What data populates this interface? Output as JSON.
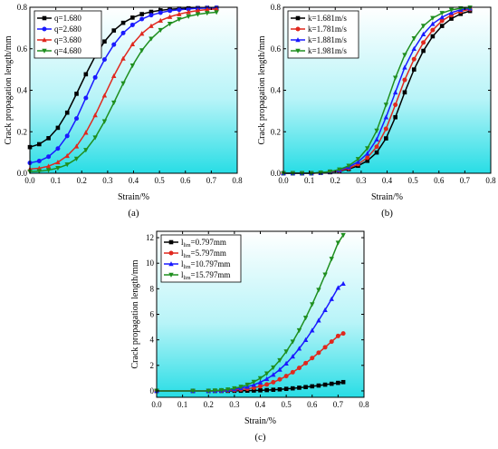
{
  "chart_data": [
    {
      "type": "line",
      "panel_label": "(a)",
      "xlabel": "Strain/%",
      "ylabel": "Crack propagation length/mm",
      "xlim": [
        0,
        0.8
      ],
      "ylim": [
        0,
        0.8
      ],
      "xticks": [
        "0.0",
        "0.1",
        "0.2",
        "0.3",
        "0.4",
        "0.5",
        "0.6",
        "0.7",
        "0.8"
      ],
      "yticks": [
        "0.0",
        "0.2",
        "0.4",
        "0.6",
        "0.8"
      ],
      "legend_position": "top-left",
      "x": [
        0.0,
        0.036,
        0.072,
        0.108,
        0.144,
        0.18,
        0.216,
        0.252,
        0.288,
        0.324,
        0.36,
        0.396,
        0.432,
        0.468,
        0.504,
        0.54,
        0.576,
        0.612,
        0.648,
        0.684,
        0.72
      ],
      "series": [
        {
          "name": "q=1.680",
          "color": "#000000",
          "marker": "square",
          "values": [
            0.126,
            0.14,
            0.169,
            0.219,
            0.292,
            0.383,
            0.477,
            0.564,
            0.635,
            0.688,
            0.725,
            0.75,
            0.767,
            0.778,
            0.785,
            0.79,
            0.793,
            0.795,
            0.796,
            0.797,
            0.797
          ]
        },
        {
          "name": "q=2.680",
          "color": "#1a1aff",
          "marker": "circle",
          "values": [
            0.05,
            0.059,
            0.08,
            0.119,
            0.18,
            0.264,
            0.363,
            0.462,
            0.548,
            0.62,
            0.676,
            0.715,
            0.743,
            0.762,
            0.774,
            0.783,
            0.788,
            0.792,
            0.795,
            0.796,
            0.797
          ]
        },
        {
          "name": "q=3.680",
          "color": "#e0281e",
          "marker": "triangle-up",
          "values": [
            0.02,
            0.024,
            0.034,
            0.053,
            0.084,
            0.13,
            0.196,
            0.28,
            0.375,
            0.469,
            0.553,
            0.622,
            0.673,
            0.71,
            0.736,
            0.754,
            0.767,
            0.777,
            0.784,
            0.789,
            0.792
          ]
        },
        {
          "name": "q=4.680",
          "color": "#1f8f1f",
          "marker": "triangle-down",
          "values": [
            0.008,
            0.01,
            0.015,
            0.025,
            0.042,
            0.07,
            0.112,
            0.172,
            0.25,
            0.34,
            0.433,
            0.519,
            0.592,
            0.648,
            0.69,
            0.72,
            0.742,
            0.756,
            0.766,
            0.772,
            0.776
          ]
        }
      ]
    },
    {
      "type": "line",
      "panel_label": "(b)",
      "xlabel": "Strain/%",
      "ylabel": "Crack propagation length/mm",
      "xlim": [
        0,
        0.8
      ],
      "ylim": [
        0,
        0.8
      ],
      "xticks": [
        "0.0",
        "0.1",
        "0.2",
        "0.3",
        "0.4",
        "0.5",
        "0.6",
        "0.7",
        "0.8"
      ],
      "yticks": [
        "0.0",
        "0.2",
        "0.4",
        "0.6",
        "0.8"
      ],
      "legend_position": "top-left",
      "x": [
        0.0,
        0.036,
        0.072,
        0.108,
        0.144,
        0.18,
        0.216,
        0.252,
        0.288,
        0.324,
        0.36,
        0.396,
        0.432,
        0.468,
        0.504,
        0.54,
        0.576,
        0.612,
        0.648,
        0.684,
        0.72
      ],
      "series": [
        {
          "name": "k=1.681m/s",
          "color": "#000000",
          "marker": "square",
          "values": [
            0,
            0,
            0,
            0,
            0.002,
            0.005,
            0.01,
            0.02,
            0.036,
            0.06,
            0.1,
            0.168,
            0.27,
            0.39,
            0.5,
            0.59,
            0.66,
            0.71,
            0.745,
            0.768,
            0.782
          ]
        },
        {
          "name": "k=1.781m/s",
          "color": "#e0281e",
          "marker": "circle",
          "values": [
            0,
            0,
            0,
            0,
            0.002,
            0.006,
            0.012,
            0.024,
            0.044,
            0.075,
            0.128,
            0.214,
            0.33,
            0.45,
            0.55,
            0.63,
            0.69,
            0.735,
            0.762,
            0.78,
            0.79
          ]
        },
        {
          "name": "k=1.881m/s",
          "color": "#1a1aff",
          "marker": "triangle-up",
          "values": [
            0,
            0,
            0,
            0,
            0.003,
            0.007,
            0.015,
            0.03,
            0.055,
            0.095,
            0.163,
            0.27,
            0.39,
            0.51,
            0.6,
            0.67,
            0.72,
            0.752,
            0.774,
            0.788,
            0.795
          ]
        },
        {
          "name": "k=1.981m/s",
          "color": "#1f8f1f",
          "marker": "triangle-down",
          "values": [
            0,
            0,
            0,
            0,
            0.003,
            0.008,
            0.018,
            0.036,
            0.068,
            0.12,
            0.205,
            0.33,
            0.46,
            0.57,
            0.65,
            0.71,
            0.748,
            0.772,
            0.787,
            0.795,
            0.798
          ]
        }
      ]
    },
    {
      "type": "line",
      "panel_label": "(c)",
      "xlabel": "Strain/%",
      "ylabel": "Crack propagation length/mm",
      "xlim": [
        0,
        0.8
      ],
      "ylim": [
        -0.5,
        12.5
      ],
      "xticks": [
        "0.0",
        "0.1",
        "0.2",
        "0.3",
        "0.4",
        "0.5",
        "0.6",
        "0.7",
        "0.8"
      ],
      "yticks": [
        "0",
        "2",
        "4",
        "6",
        "8",
        "10",
        "12"
      ],
      "ytick_values": [
        0,
        2,
        4,
        6,
        8,
        10,
        12
      ],
      "legend_position": "top-left",
      "x": [
        0.0,
        0.14,
        0.2,
        0.225,
        0.25,
        0.275,
        0.3,
        0.325,
        0.35,
        0.375,
        0.4,
        0.425,
        0.45,
        0.475,
        0.5,
        0.525,
        0.55,
        0.575,
        0.6,
        0.625,
        0.65,
        0.675,
        0.7,
        0.72
      ],
      "series": [
        {
          "name": "l_lim=0.797mm",
          "label_main": "l",
          "label_sub": "lim",
          "label_rest": "=0.797mm",
          "color": "#000000",
          "marker": "square",
          "values": [
            0,
            0,
            0,
            0,
            0.002,
            0.004,
            0.007,
            0.012,
            0.02,
            0.03,
            0.045,
            0.065,
            0.09,
            0.12,
            0.16,
            0.2,
            0.25,
            0.3,
            0.36,
            0.42,
            0.49,
            0.56,
            0.63,
            0.69
          ]
        },
        {
          "name": "l_lim=5.797mm",
          "label_main": "l",
          "label_sub": "lim",
          "label_rest": "=5.797mm",
          "color": "#e0281e",
          "marker": "circle",
          "values": [
            0,
            0,
            0,
            0.01,
            0.02,
            0.04,
            0.07,
            0.11,
            0.17,
            0.25,
            0.36,
            0.5,
            0.68,
            0.9,
            1.16,
            1.46,
            1.8,
            2.17,
            2.57,
            2.99,
            3.42,
            3.86,
            4.3,
            4.5
          ]
        },
        {
          "name": "l_lim=10.797mm",
          "label_main": "l",
          "label_sub": "lim",
          "label_rest": "=10.797mm",
          "color": "#1a1aff",
          "marker": "triangle-up",
          "values": [
            0,
            0,
            0,
            0.02,
            0.04,
            0.08,
            0.14,
            0.22,
            0.33,
            0.48,
            0.68,
            0.94,
            1.27,
            1.67,
            2.15,
            2.7,
            3.32,
            4.0,
            4.74,
            5.52,
            6.34,
            7.2,
            8.08,
            8.4
          ]
        },
        {
          "name": "l_lim=15.797mm",
          "label_main": "l",
          "label_sub": "lim",
          "label_rest": "=15.797mm",
          "color": "#1f8f1f",
          "marker": "triangle-down",
          "values": [
            0,
            0,
            0,
            0.03,
            0.06,
            0.11,
            0.2,
            0.32,
            0.48,
            0.7,
            0.99,
            1.36,
            1.83,
            2.4,
            3.08,
            3.86,
            4.74,
            5.72,
            6.78,
            7.91,
            9.1,
            10.34,
            11.6,
            12.2
          ]
        }
      ]
    }
  ]
}
